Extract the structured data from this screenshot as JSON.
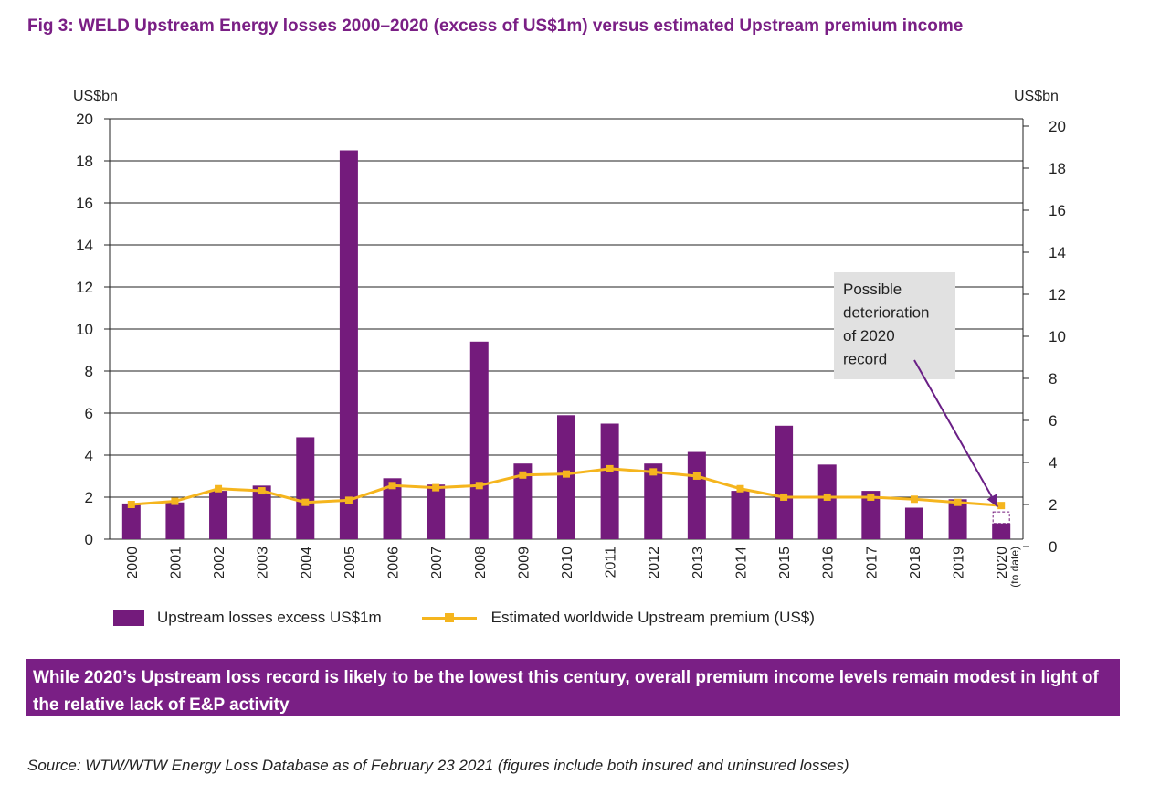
{
  "title": "Fig 3: WELD Upstream Energy losses 2000–2020 (excess of US$1m) versus estimated Upstream premium income",
  "colors": {
    "title": "#7a1f85",
    "bar": "#741b7c",
    "line": "#f5b51e",
    "grid": "#222222",
    "banner_bg": "#7a1f85",
    "callout_bg": "#e1e1e1",
    "arrow": "#6a1f86"
  },
  "chart_data": {
    "type": "bar+line",
    "categories": [
      "2000",
      "2001",
      "2002",
      "2003",
      "2004",
      "2005",
      "2006",
      "2007",
      "2008",
      "2009",
      "2010",
      "2011",
      "2012",
      "2013",
      "2014",
      "2015",
      "2016",
      "2017",
      "2018",
      "2019",
      "2020"
    ],
    "category_sublabels": {
      "2020": "(to date)"
    },
    "series": [
      {
        "name": "Upstream losses excess US$1m",
        "type": "bar",
        "axis": "left",
        "values": [
          1.7,
          1.75,
          2.3,
          2.55,
          4.85,
          18.5,
          2.9,
          2.6,
          9.4,
          3.6,
          5.9,
          5.5,
          3.6,
          4.15,
          2.3,
          5.4,
          3.55,
          2.3,
          1.5,
          1.9,
          0.75
        ]
      },
      {
        "name": "Estimated worldwide Upstream premium (US$)",
        "type": "line",
        "axis": "right",
        "values": [
          2.0,
          2.15,
          2.75,
          2.65,
          2.1,
          2.2,
          2.9,
          2.8,
          2.9,
          3.4,
          3.45,
          3.7,
          3.55,
          3.35,
          2.75,
          2.35,
          2.35,
          2.35,
          2.25,
          2.1,
          1.95
        ]
      }
    ],
    "y_left": {
      "unit": "US$bn",
      "min": 0,
      "max": 20,
      "ticks": [
        0,
        2,
        4,
        6,
        8,
        10,
        12,
        14,
        16,
        18,
        20
      ]
    },
    "y_right": {
      "unit": "US$bn",
      "min": 0,
      "max": 20,
      "ticks": [
        0,
        2,
        4,
        6,
        8,
        10,
        12,
        14,
        16,
        18,
        20
      ]
    },
    "gridlines": true,
    "legend_position": "bottom",
    "annotation": {
      "lines": [
        "Possible",
        "deterioration",
        "of 2020",
        "record"
      ],
      "points_to": "2020",
      "possible_extension_value": 1.3
    }
  },
  "banner": "While 2020’s Upstream loss record is likely to be the lowest this century, overall premium income levels remain modest in light of the relative lack of E&P activity",
  "source": "Source: WTW/WTW Energy Loss Database as of February 23 2021 (figures include both insured and uninsured losses)"
}
